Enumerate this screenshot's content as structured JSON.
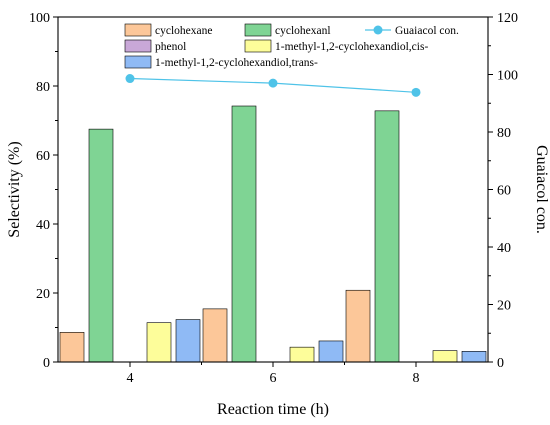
{
  "chart_data": {
    "type": "bar",
    "xlabel": "Reaction time (h)",
    "ylabel": "Selectivity (%)",
    "y2label": "Guaiacol con.",
    "x_ticks": [
      "4",
      "6",
      "8"
    ],
    "ylim": [
      0,
      100
    ],
    "y_ticks": [
      0,
      20,
      40,
      60,
      80,
      100
    ],
    "y2lim": [
      0,
      120
    ],
    "y2_ticks": [
      0,
      20,
      40,
      60,
      80,
      100,
      120
    ],
    "grid": false,
    "legend_position": "top",
    "categories": [
      "4",
      "6",
      "8"
    ],
    "series": [
      {
        "name": "cyclohexane",
        "color": "#fcc799",
        "values": [
          8.6,
          15.4,
          20.8
        ]
      },
      {
        "name": "cyclohexanl",
        "color": "#7fd494",
        "values": [
          67.5,
          74.2,
          72.8
        ]
      },
      {
        "name": "phenol",
        "color": "#c9a8d8",
        "values": [
          0,
          0,
          0
        ]
      },
      {
        "name": "1-methyl-1,2-cyclohexandiol,cis-",
        "color": "#fdfd9a",
        "values": [
          11.4,
          4.3,
          3.3
        ]
      },
      {
        "name": "1-methyl-1,2-cyclohexandiol,trans-",
        "color": "#8fbaf5",
        "values": [
          12.3,
          6.1,
          3.1
        ]
      }
    ],
    "line_series": {
      "name": "Guaiacol con.",
      "color": "#4fc3e8",
      "axis": "right",
      "x": [
        "4",
        "6",
        "8"
      ],
      "values": [
        98.6,
        97.0,
        93.8
      ]
    }
  }
}
